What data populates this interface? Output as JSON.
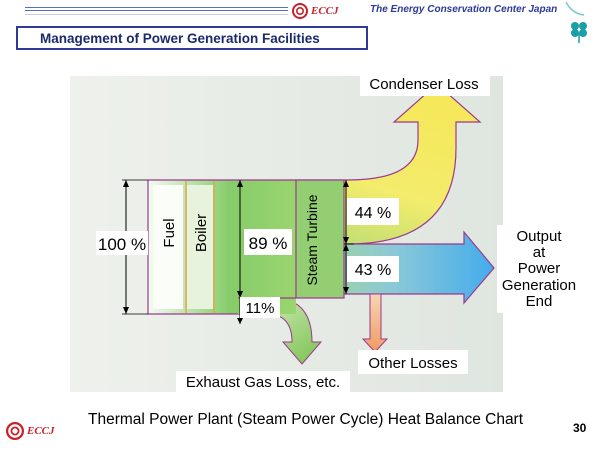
{
  "header": {
    "logo_text": "ECCJ",
    "organization": "The Energy Conservation Center Japan",
    "slide_title": "Management of Power Generation Facilities"
  },
  "diagram": {
    "input_percent": "100 %",
    "fuel_label": "Fuel",
    "boiler_label": "Boiler",
    "boiler_output_percent": "89 %",
    "exhaust_percent": "11%",
    "turbine_label": "Steam Turbine",
    "condenser_percent": "44 %",
    "output_percent": "43 %",
    "condenser_loss_label": "Condenser Loss",
    "output_label": [
      "Output",
      "at",
      "Power",
      "Generation",
      "End"
    ],
    "other_losses_label": "Other Losses",
    "exhaust_loss_label": "Exhaust Gas Loss, etc."
  },
  "footer": {
    "chart_title": "Thermal Power Plant (Steam Power Cycle) Heat Balance Chart",
    "logo_text": "ECCJ",
    "page_number": "30"
  },
  "colors": {
    "brand_red": "#c7222a",
    "brand_navy": "#2d3a96",
    "flow_green": "#8fce6d",
    "condenser_yellow": "#f3e96a",
    "output_blue": "#5ab6e6",
    "outline_purple": "#9b3a8e"
  }
}
